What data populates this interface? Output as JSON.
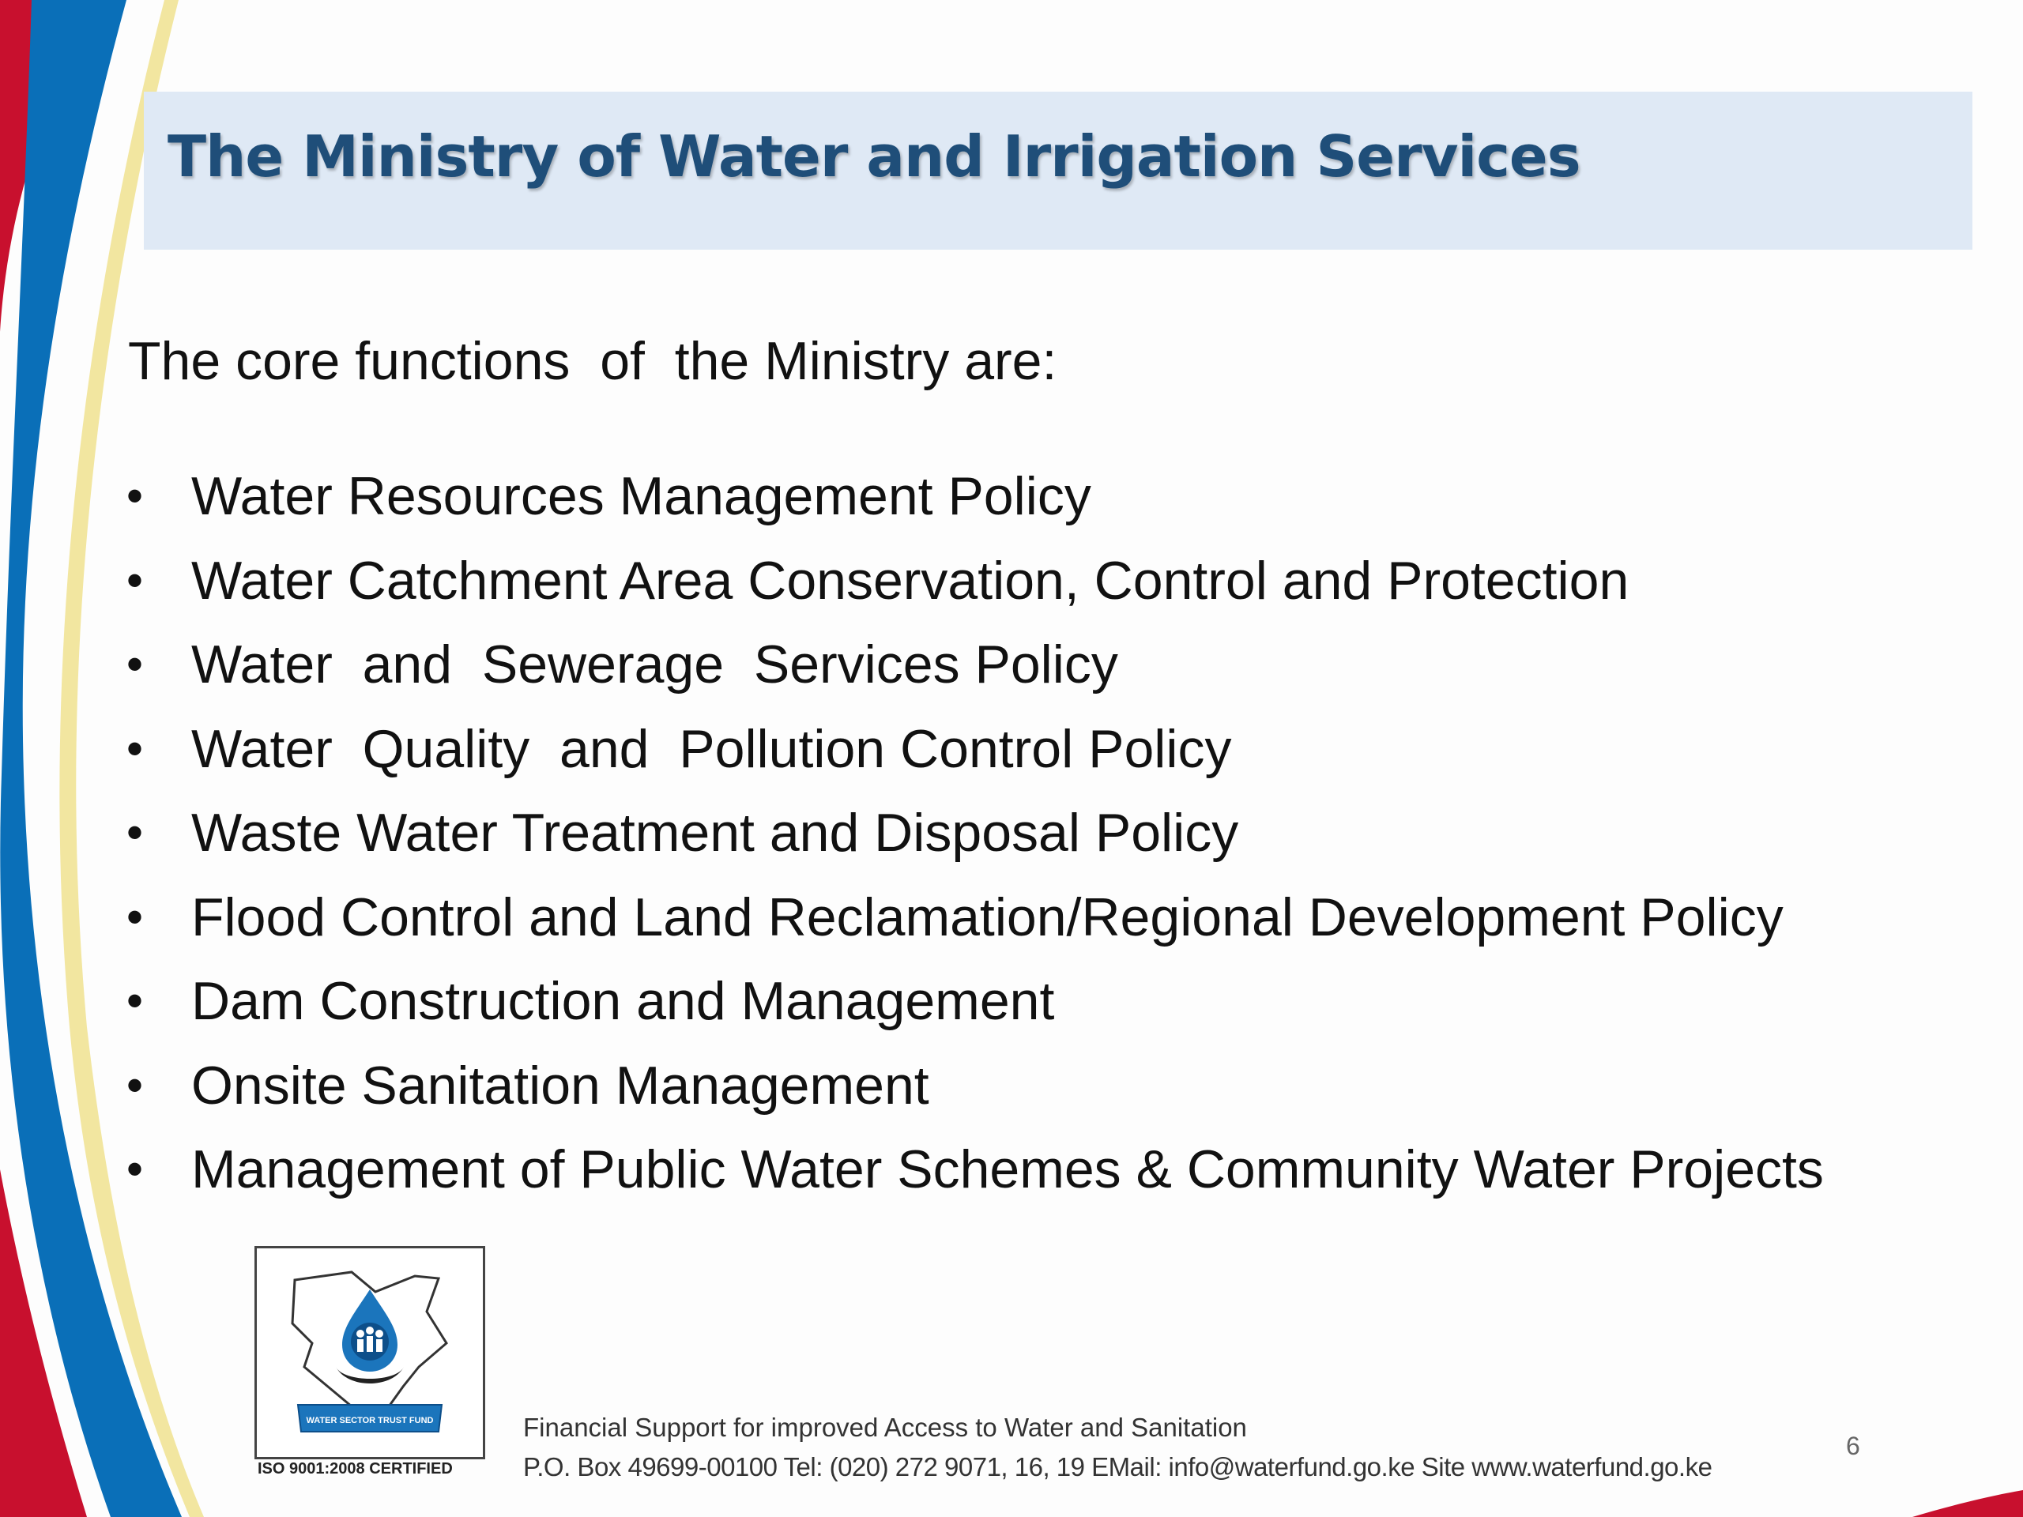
{
  "slide": {
    "title": "The Ministry of Water and Irrigation Services",
    "intro": "The core functions  of  the Ministry are:",
    "bullet_glyph": "•",
    "bullets": [
      "Water Resources Management Policy",
      "Water Catchment Area Conservation, Control and Protection",
      "Water  and  Sewerage  Services Policy",
      "Water  Quality  and  Pollution Control Policy",
      "Waste Water Treatment and Disposal Policy",
      "Flood Control and Land Reclamation/Regional Development Policy",
      "Dam Construction and Management",
      "Onsite Sanitation Management",
      "Management of Public Water Schemes & Community Water Projects"
    ],
    "page_number": "6"
  },
  "logo": {
    "banner_text": "WATER SECTOR TRUST FUND",
    "certification": "ISO 9001:2008 CERTIFIED"
  },
  "footer": {
    "line1": "Financial Support for improved Access to Water and Sanitation",
    "line2": "P.O. Box 49699-00100 Tel: (020) 272 9071, 16, 19 EMail: info@waterfund.go.ke Site www.waterfund.go.ke"
  },
  "colors": {
    "title_text": "#1f4e79",
    "title_band": "#dfe9f5",
    "swoosh_red": "#c8102e",
    "swoosh_blue": "#0a6fb8",
    "swoosh_yellow": "#f2e6a0",
    "logo_blue": "#1b75bc"
  }
}
